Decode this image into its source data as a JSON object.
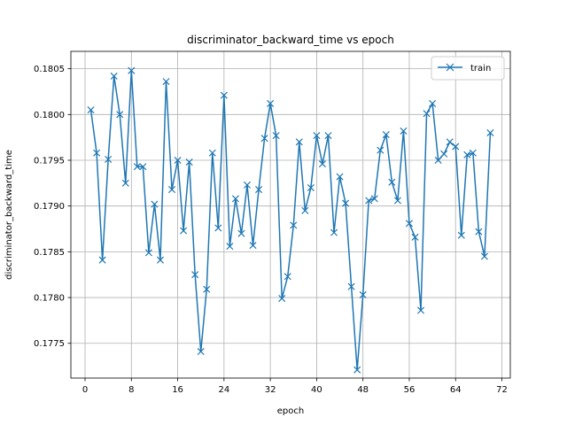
{
  "chart_data": {
    "type": "line",
    "title": "discriminator_backward_time vs epoch",
    "xlabel": "epoch",
    "ylabel": "discriminator_backward_time",
    "xlim": [
      -2.45,
      73.45
    ],
    "ylim": [
      0.17712,
      0.18069
    ],
    "xticks": [
      0,
      8,
      16,
      24,
      32,
      40,
      48,
      56,
      64,
      72
    ],
    "yticks": [
      0.1775,
      0.178,
      0.1785,
      0.179,
      0.1795,
      0.18,
      0.1805
    ],
    "ytick_labels": [
      "0.1775",
      "0.1780",
      "0.1785",
      "0.1790",
      "0.1795",
      "0.1800",
      "0.1805"
    ],
    "grid": true,
    "legend_position": "upper right",
    "series": [
      {
        "name": "train",
        "color": "#1f77b4",
        "marker": "x",
        "x": [
          1,
          2,
          3,
          4,
          5,
          6,
          7,
          8,
          9,
          10,
          11,
          12,
          13,
          14,
          15,
          16,
          17,
          18,
          19,
          20,
          21,
          22,
          23,
          24,
          25,
          26,
          27,
          28,
          29,
          30,
          31,
          32,
          33,
          34,
          35,
          36,
          37,
          38,
          39,
          40,
          41,
          42,
          43,
          44,
          45,
          46,
          47,
          48,
          49,
          50,
          51,
          52,
          53,
          54,
          55,
          56,
          57,
          58,
          59,
          60,
          61,
          62,
          63,
          64,
          65,
          66,
          67,
          68,
          69,
          70
        ],
        "y": [
          0.18005,
          0.17958,
          0.17841,
          0.17951,
          0.18042,
          0.18,
          0.17925,
          0.18048,
          0.17943,
          0.17943,
          0.17849,
          0.17902,
          0.17841,
          0.18036,
          0.17918,
          0.1795,
          0.17873,
          0.17948,
          0.17825,
          0.17741,
          0.17809,
          0.17958,
          0.17876,
          0.18021,
          0.17856,
          0.17908,
          0.1787,
          0.17923,
          0.17857,
          0.17918,
          0.17974,
          0.18012,
          0.17977,
          0.17799,
          0.17823,
          0.17879,
          0.1797,
          0.17895,
          0.1792,
          0.17977,
          0.17946,
          0.17977,
          0.17871,
          0.17932,
          0.17903,
          0.17812,
          0.17721,
          0.17803,
          0.17906,
          0.17908,
          0.17961,
          0.17978,
          0.17926,
          0.17906,
          0.17982,
          0.17881,
          0.17866,
          0.17786,
          0.18001,
          0.18012,
          0.1795,
          0.17957,
          0.1797,
          0.17965,
          0.17868,
          0.17956,
          0.17958,
          0.17872,
          0.17845,
          0.1798
        ]
      }
    ]
  }
}
